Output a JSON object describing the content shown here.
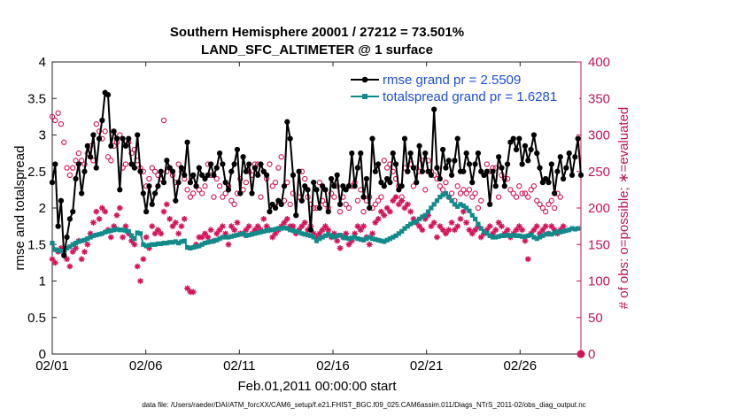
{
  "chart_data": {
    "type": "line",
    "title_line1": "Southern Hemisphere 20001 / 27212 = 73.501%",
    "title_line2": "LAND_SFC_ALTIMETER @ 1 surface",
    "xlabel": "Feb.01,2011 00:00:00 start",
    "ylabel_left": "rmse and totalspread",
    "ylabel_right": "# of obs: o=possible; ∗=evaluated",
    "footnote": "data file: /Users/raeder/DAI/ATM_forcXX/CAM6_setup/f.e21.FHIST_BGC.f09_025.CAM6assim.011/Diags_NTrS_2011-02/obs_diag_output.nc",
    "xlim": [
      0,
      28.25
    ],
    "ylim_left": [
      0,
      4
    ],
    "ylim_right": [
      0,
      400
    ],
    "x_ticks": [
      0,
      5,
      10,
      15,
      20,
      25
    ],
    "x_tick_labels": [
      "02/01",
      "02/06",
      "02/11",
      "02/16",
      "02/21",
      "02/26"
    ],
    "y_ticks_left": [
      "0",
      "0.5",
      "1",
      "1.5",
      "2",
      "2.5",
      "3",
      "3.5",
      "4"
    ],
    "y_ticks_right": [
      "0",
      "50",
      "100",
      "150",
      "200",
      "250",
      "300",
      "350",
      "400"
    ],
    "colors": {
      "rmse": "#000000",
      "totalspread": "#128a8a",
      "obs": "#d4145a",
      "right_axis": "#c0145c",
      "legend_text": "#1f4fd6"
    },
    "series": [
      {
        "name": "rmse grand pr = 2.5509",
        "axis": "left",
        "values": [
          2.35,
          2.6,
          1.75,
          2.1,
          1.35,
          1.6,
          1.85,
          1.95,
          2.4,
          2.6,
          2.2,
          2.5,
          2.85,
          2.7,
          3.0,
          2.55,
          2.95,
          3.2,
          3.58,
          3.55,
          2.85,
          3.05,
          2.95,
          2.25,
          2.95,
          2.85,
          2.95,
          2.6,
          2.55,
          3.0,
          2.5,
          2.2,
          1.95,
          2.3,
          2.05,
          2.2,
          2.3,
          2.5,
          2.35,
          2.65,
          2.55,
          2.5,
          2.1,
          2.35,
          2.55,
          2.45,
          2.9,
          2.35,
          2.45,
          2.3,
          2.55,
          2.45,
          2.4,
          2.45,
          2.6,
          2.45,
          2.55,
          2.75,
          2.6,
          2.35,
          2.25,
          2.5,
          2.6,
          2.8,
          2.2,
          2.7,
          2.5,
          2.6,
          2.2,
          2.55,
          2.45,
          2.6,
          2.5,
          2.45,
          1.95,
          2.05,
          2.0,
          2.1,
          2.05,
          2.3,
          3.18,
          2.95,
          2.45,
          1.9,
          2.5,
          2.1,
          2.3,
          2.25,
          1.7,
          2.35,
          2.25,
          2.0,
          2.3,
          2.25,
          1.95,
          2.4,
          2.3,
          2.45,
          2.05,
          2.3,
          2.25,
          2.3,
          2.75,
          2.3,
          2.55,
          2.75,
          2.15,
          2.4,
          2.0,
          2.95,
          2.5,
          2.6,
          2.35,
          2.3,
          2.4,
          2.35,
          2.75,
          2.6,
          2.25,
          2.3,
          2.95,
          2.5,
          2.75,
          2.55,
          2.35,
          2.85,
          2.5,
          2.75,
          2.5,
          2.45,
          3.35,
          2.55,
          2.4,
          2.8,
          2.55,
          2.65,
          2.45,
          2.65,
          2.95,
          2.5,
          2.5,
          2.75,
          2.6,
          2.35,
          2.6,
          2.75,
          2.5,
          2.45,
          2.5,
          2.05,
          2.5,
          2.3,
          2.7,
          2.55,
          2.3,
          2.6,
          2.9,
          2.95,
          2.8,
          2.95,
          2.6,
          2.85,
          2.65,
          2.8,
          3.0,
          2.75,
          2.55,
          2.35,
          2.4,
          2.35,
          2.6,
          2.2,
          2.5,
          2.7,
          2.4,
          2.55,
          2.75,
          2.45,
          2.7,
          2.95,
          2.45
        ]
      },
      {
        "name": "totalspread grand pr = 1.6281",
        "axis": "left",
        "values": [
          1.52,
          1.43,
          1.42,
          1.41,
          1.4,
          1.45,
          1.47,
          1.5,
          1.52,
          1.54,
          1.55,
          1.56,
          1.58,
          1.6,
          1.62,
          1.63,
          1.64,
          1.65,
          1.67,
          1.68,
          1.69,
          1.7,
          1.71,
          1.7,
          1.7,
          1.69,
          1.68,
          1.62,
          1.58,
          1.66,
          1.65,
          1.5,
          1.48,
          1.49,
          1.5,
          1.5,
          1.51,
          1.51,
          1.52,
          1.52,
          1.53,
          1.53,
          1.54,
          1.52,
          1.54,
          1.55,
          1.46,
          1.45,
          1.46,
          1.47,
          1.48,
          1.5,
          1.52,
          1.53,
          1.54,
          1.55,
          1.56,
          1.58,
          1.6,
          1.6,
          1.6,
          1.61,
          1.62,
          1.63,
          1.64,
          1.65,
          1.62,
          1.63,
          1.64,
          1.65,
          1.66,
          1.67,
          1.68,
          1.69,
          1.7,
          1.7,
          1.71,
          1.72,
          1.72,
          1.73,
          1.72,
          1.7,
          1.69,
          1.68,
          1.67,
          1.65,
          1.64,
          1.63,
          1.62,
          1.6,
          1.55,
          1.58,
          1.6,
          1.62,
          1.64,
          1.62,
          1.6,
          1.62,
          1.63,
          1.6,
          1.59,
          1.58,
          1.59,
          1.6,
          1.58,
          1.57,
          1.56,
          1.58,
          1.6,
          1.58,
          1.57,
          1.56,
          1.55,
          1.54,
          1.56,
          1.58,
          1.6,
          1.62,
          1.65,
          1.68,
          1.72,
          1.75,
          1.78,
          1.8,
          1.82,
          1.85,
          1.88,
          1.9,
          1.95,
          2.0,
          2.05,
          2.1,
          2.15,
          2.18,
          2.2,
          2.15,
          2.1,
          2.05,
          2.02,
          2.05,
          2.03,
          2.0,
          1.96,
          1.9,
          1.85,
          1.78,
          1.72,
          1.68,
          1.65,
          1.62,
          1.6,
          1.6,
          1.61,
          1.62,
          1.62,
          1.63,
          1.62,
          1.63,
          1.62,
          1.62,
          1.61,
          1.61,
          1.62,
          1.63,
          1.6,
          1.58,
          1.6,
          1.62,
          1.64,
          1.65,
          1.64,
          1.66,
          1.68,
          1.67,
          1.68,
          1.69,
          1.7,
          1.72,
          1.71,
          1.72
        ]
      },
      {
        "name": "possible obs",
        "axis": "right",
        "marker": "circle",
        "values": [
          325,
          320,
          330,
          315,
          290,
          255,
          245,
          255,
          265,
          275,
          265,
          260,
          275,
          285,
          265,
          315,
          305,
          295,
          305,
          270,
          265,
          285,
          290,
          300,
          255,
          260,
          290,
          275,
          280,
          265,
          255,
          250,
          230,
          240,
          255,
          250,
          245,
          240,
          320,
          250,
          255,
          245,
          235,
          260,
          250,
          240,
          225,
          215,
          220,
          230,
          225,
          220,
          230,
          260,
          245,
          215,
          240,
          230,
          215,
          220,
          230,
          210,
          205,
          220,
          240,
          225,
          235,
          250,
          245,
          260,
          260,
          215,
          250,
          240,
          260,
          230,
          235,
          255,
          270,
          210,
          235,
          205,
          220,
          190,
          215,
          250,
          240,
          215,
          205,
          200,
          200,
          235,
          210,
          205,
          200,
          220,
          215,
          230,
          195,
          215,
          205,
          200,
          230,
          235,
          210,
          225,
          195,
          210,
          215,
          200,
          205,
          210,
          215,
          265,
          255,
          260,
          250,
          240,
          230,
          215,
          255,
          250,
          260,
          230,
          255,
          250,
          265,
          225,
          265,
          250,
          245,
          240,
          230,
          225,
          235,
          215,
          220,
          210,
          230,
          220,
          225,
          220,
          225,
          215,
          220,
          200,
          210,
          245,
          260,
          250,
          255,
          255,
          215,
          245,
          240,
          240,
          225,
          220,
          215,
          230,
          220,
          220,
          215,
          225,
          230,
          210,
          205,
          200,
          195,
          205,
          210,
          200,
          220,
          215
        ]
      },
      {
        "name": "evaluated obs",
        "axis": "right",
        "marker": "asterisk",
        "values": [
          130,
          125,
          140,
          145,
          140,
          130,
          120,
          140,
          145,
          155,
          130,
          140,
          150,
          165,
          180,
          195,
          185,
          200,
          195,
          170,
          160,
          175,
          190,
          200,
          160,
          175,
          165,
          155,
          150,
          120,
          100,
          130,
          160,
          145,
          175,
          165,
          170,
          165,
          195,
          205,
          185,
          175,
          180,
          165,
          175,
          185,
          90,
          85,
          85,
          150,
          160,
          160,
          165,
          160,
          170,
          155,
          165,
          170,
          175,
          165,
          150,
          175,
          170,
          180,
          165,
          165,
          170,
          175,
          165,
          170,
          175,
          170,
          185,
          175,
          170,
          160,
          165,
          170,
          175,
          180,
          185,
          175,
          175,
          165,
          170,
          175,
          180,
          170,
          175,
          165,
          160,
          165,
          170,
          175,
          170,
          160,
          165,
          155,
          145,
          160,
          165,
          150,
          155,
          165,
          175,
          170,
          175,
          160,
          150,
          165,
          180,
          185,
          195,
          190,
          200,
          195,
          210,
          215,
          205,
          210,
          200,
          205,
          195,
          185,
          180,
          175,
          170,
          185,
          190,
          175,
          180,
          160,
          175,
          170,
          165,
          170,
          180,
          170,
          175,
          185,
          195,
          180,
          170,
          165,
          170,
          175,
          160,
          165,
          170,
          175,
          165,
          170,
          180,
          175,
          165,
          170,
          160,
          165,
          170,
          175,
          170,
          155,
          130,
          165,
          170,
          175,
          165,
          170,
          175,
          165,
          175,
          170,
          165,
          170,
          175
        ]
      }
    ],
    "right_edge_marker_value": 0
  }
}
